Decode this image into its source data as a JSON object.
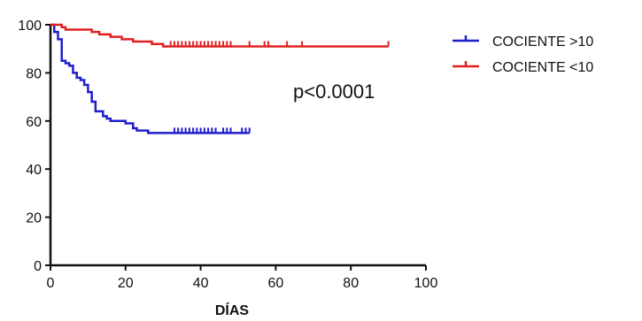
{
  "chart_data": {
    "type": "line",
    "title": "",
    "xlabel": "DÍAS",
    "ylabel": "",
    "xlim": [
      0,
      100
    ],
    "ylim": [
      0,
      100
    ],
    "xticks": [
      "0",
      "20",
      "40",
      "60",
      "80",
      "100"
    ],
    "yticks": [
      "0",
      "20",
      "40",
      "60",
      "80",
      "100"
    ],
    "grid": false,
    "legend_position": "top-right",
    "annotation": "p<0.0001",
    "series": [
      {
        "name": "COCIENTE >10",
        "color": "#1f1fcc",
        "step": true,
        "points": [
          [
            0,
            100
          ],
          [
            1,
            97
          ],
          [
            2,
            94
          ],
          [
            3,
            85
          ],
          [
            4,
            84
          ],
          [
            5,
            83
          ],
          [
            6,
            80
          ],
          [
            7,
            78
          ],
          [
            8,
            77
          ],
          [
            9,
            75
          ],
          [
            10,
            72
          ],
          [
            11,
            68
          ],
          [
            12,
            64
          ],
          [
            14,
            62
          ],
          [
            15,
            61
          ],
          [
            16,
            60
          ],
          [
            20,
            59
          ],
          [
            22,
            57
          ],
          [
            23,
            56
          ],
          [
            26,
            55
          ],
          [
            53,
            55
          ]
        ],
        "censor_marks": [
          33,
          34,
          35,
          36,
          37,
          38,
          39,
          40,
          41,
          42,
          43,
          44,
          46,
          47,
          48,
          51,
          52,
          53
        ]
      },
      {
        "name": "COCIENTE <10",
        "color": "#e02020",
        "step": true,
        "points": [
          [
            0,
            100
          ],
          [
            3,
            99
          ],
          [
            4,
            98
          ],
          [
            11,
            97
          ],
          [
            13,
            96
          ],
          [
            16,
            95
          ],
          [
            19,
            94
          ],
          [
            22,
            93
          ],
          [
            27,
            92
          ],
          [
            30,
            91
          ],
          [
            90,
            91
          ]
        ],
        "censor_marks": [
          32,
          33,
          34,
          35,
          36,
          37,
          38,
          39,
          40,
          41,
          42,
          43,
          44,
          45,
          46,
          47,
          48,
          53,
          57,
          58,
          63,
          67,
          90
        ]
      }
    ]
  }
}
